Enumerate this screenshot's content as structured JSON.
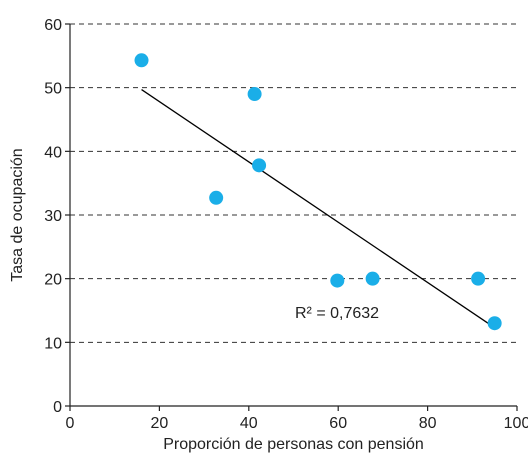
{
  "chart_data": {
    "type": "scatter",
    "title": "",
    "xlabel": "Proporción de personas con pensión",
    "ylabel": "Tasa de ocupación",
    "xlim": [
      0,
      100
    ],
    "ylim": [
      0,
      60
    ],
    "x_ticks": [
      0,
      20,
      40,
      60,
      80,
      100
    ],
    "y_ticks": [
      0,
      10,
      20,
      30,
      40,
      50,
      60
    ],
    "grid": "horizontal dashed",
    "points": [
      {
        "x": 16,
        "y": 54.3
      },
      {
        "x": 32.7,
        "y": 32.7
      },
      {
        "x": 41.3,
        "y": 49
      },
      {
        "x": 42.3,
        "y": 37.8
      },
      {
        "x": 59.8,
        "y": 19.7
      },
      {
        "x": 67.7,
        "y": 20
      },
      {
        "x": 91.3,
        "y": 20
      },
      {
        "x": 95,
        "y": 13
      }
    ],
    "trendline": {
      "x_start": 16,
      "y_start": 49.7,
      "x_end": 95,
      "y_end": 12.3
    },
    "annotation": "R² = 0,7632",
    "colors": {
      "points": "#1aaee8",
      "trendline": "#000000",
      "grid": "#333333",
      "text": "#222222"
    }
  }
}
